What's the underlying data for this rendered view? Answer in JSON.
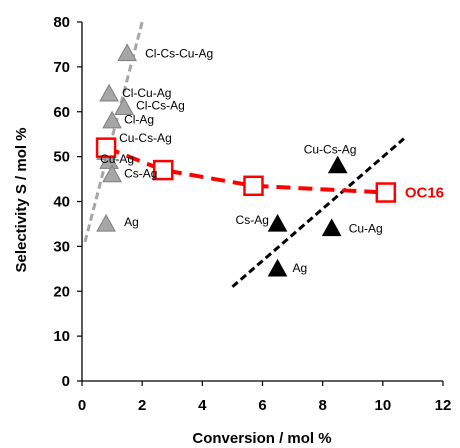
{
  "chart_data": {
    "type": "scatter",
    "xlabel": "Conversion / mol %",
    "ylabel": "Selectivity S / mol %",
    "xlim": [
      0,
      12
    ],
    "ylim": [
      0,
      80
    ],
    "x_ticks": [
      "0",
      "2",
      "4",
      "6",
      "8",
      "10",
      "12"
    ],
    "y_ticks": [
      "0",
      "10",
      "20",
      "30",
      "40",
      "50",
      "60",
      "70",
      "80"
    ],
    "grid": false,
    "series": [
      {
        "marker": "triangle",
        "color": "#a6a6a6",
        "points": [
          {
            "x": 1.5,
            "y": 73,
            "label": "Cl-Cs-Cu-Ag"
          },
          {
            "x": 0.9,
            "y": 64,
            "label": "Cl-Cu-Ag"
          },
          {
            "x": 1.4,
            "y": 61,
            "label": "Cl-Cs-Ag"
          },
          {
            "x": 1.0,
            "y": 58,
            "label": "Cl-Ag"
          },
          {
            "x": 0.8,
            "y": 51,
            "label": "Cu-Cs-Ag"
          },
          {
            "x": 0.9,
            "y": 49,
            "label": "Cu-Ag"
          },
          {
            "x": 1.0,
            "y": 46,
            "label": "Cs-Ag"
          },
          {
            "x": 0.8,
            "y": 35,
            "label": "Ag"
          }
        ]
      },
      {
        "marker": "triangle",
        "color": "#000000",
        "points": [
          {
            "x": 8.5,
            "y": 48,
            "label": "Cu-Cs-Ag"
          },
          {
            "x": 6.5,
            "y": 35,
            "label": "Cs-Ag"
          },
          {
            "x": 8.3,
            "y": 34,
            "label": "Cu-Ag"
          },
          {
            "x": 6.5,
            "y": 25,
            "label": "Ag"
          }
        ]
      },
      {
        "name": "OC16",
        "marker": "square-open",
        "color": "#ff0000",
        "line": "dashed",
        "points": [
          {
            "x": 0.8,
            "y": 52
          },
          {
            "x": 2.7,
            "y": 47
          },
          {
            "x": 5.7,
            "y": 43.5
          },
          {
            "x": 10.1,
            "y": 42
          }
        ]
      }
    ],
    "trend_lines": [
      {
        "color": "#a6a6a6",
        "style": "dashed",
        "from": [
          0.1,
          31
        ],
        "to": [
          2.0,
          80
        ]
      },
      {
        "color": "#000000",
        "style": "dashed",
        "from": [
          5.0,
          21
        ],
        "to": [
          10.7,
          54
        ]
      }
    ]
  }
}
